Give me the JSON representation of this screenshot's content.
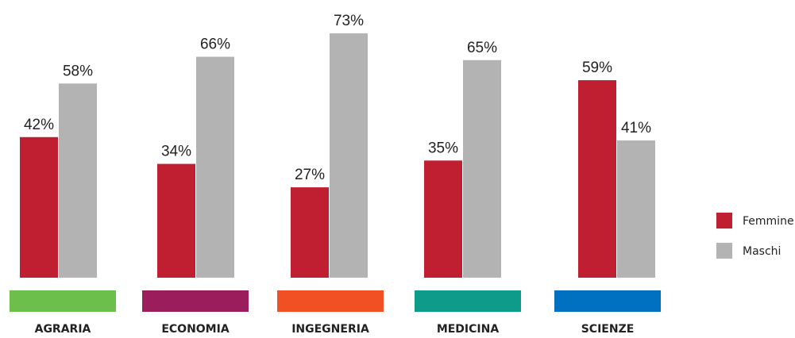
{
  "chart_data": {
    "type": "bar",
    "categories": [
      "AGRARIA",
      "ECONOMIA",
      "INGEGNERIA",
      "MEDICINA",
      "SCIENZE"
    ],
    "category_colors": [
      "#6cbf4a",
      "#9c1d5c",
      "#f05023",
      "#0f9b8a",
      "#0070c0"
    ],
    "series": [
      {
        "name": "Femmine",
        "color": "#c01f32",
        "values": [
          42,
          34,
          27,
          35,
          59
        ],
        "value_labels": [
          "42%",
          "34%",
          "27%",
          "35%",
          "59%"
        ]
      },
      {
        "name": "Maschi",
        "color": "#b3b3b3",
        "values": [
          58,
          66,
          73,
          65,
          41
        ],
        "value_labels": [
          "58%",
          "66%",
          "73%",
          "65%",
          "41%"
        ]
      }
    ],
    "legend": "right"
  }
}
